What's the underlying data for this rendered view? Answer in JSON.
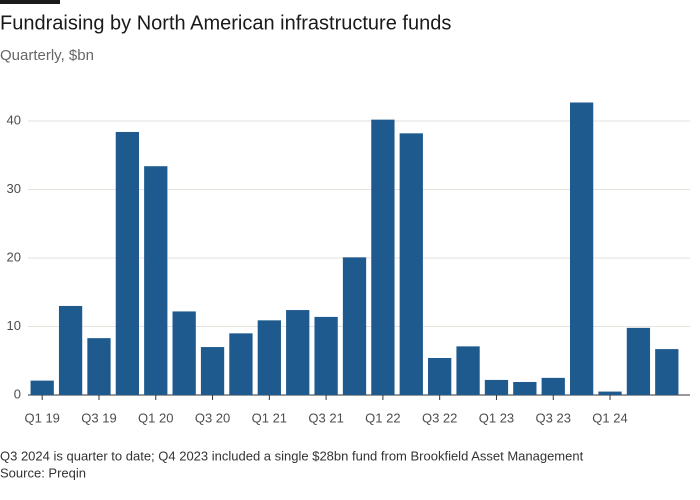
{
  "chart_data": {
    "type": "bar",
    "title": "Fundraising by North American infrastructure funds",
    "subtitle": "Quarterly, $bn",
    "note": "Q3 2024 is quarter to date; Q4 2023 included a single $28bn fund from Brookfield Asset Management",
    "source": "Source: Preqin",
    "categories": [
      "Q1 19",
      null,
      "Q3 19",
      null,
      "Q1 20",
      null,
      "Q3 20",
      null,
      "Q1 21",
      null,
      "Q3 21",
      null,
      "Q1 22",
      null,
      "Q3 22",
      null,
      "Q1 23",
      null,
      "Q3 23",
      null,
      "Q1 24",
      null,
      null
    ],
    "values": [
      2.1,
      13,
      8.3,
      38.4,
      33.4,
      12.2,
      7,
      9,
      10.9,
      12.4,
      11.4,
      20.1,
      40.2,
      38.2,
      5.4,
      7.1,
      2.2,
      1.9,
      2.5,
      42.7,
      0.5,
      9.8,
      6.7
    ],
    "color": "#1e5a8e",
    "ylim": [
      0,
      44
    ],
    "yticks": [
      0,
      10,
      20,
      30,
      40
    ],
    "grid": true
  }
}
